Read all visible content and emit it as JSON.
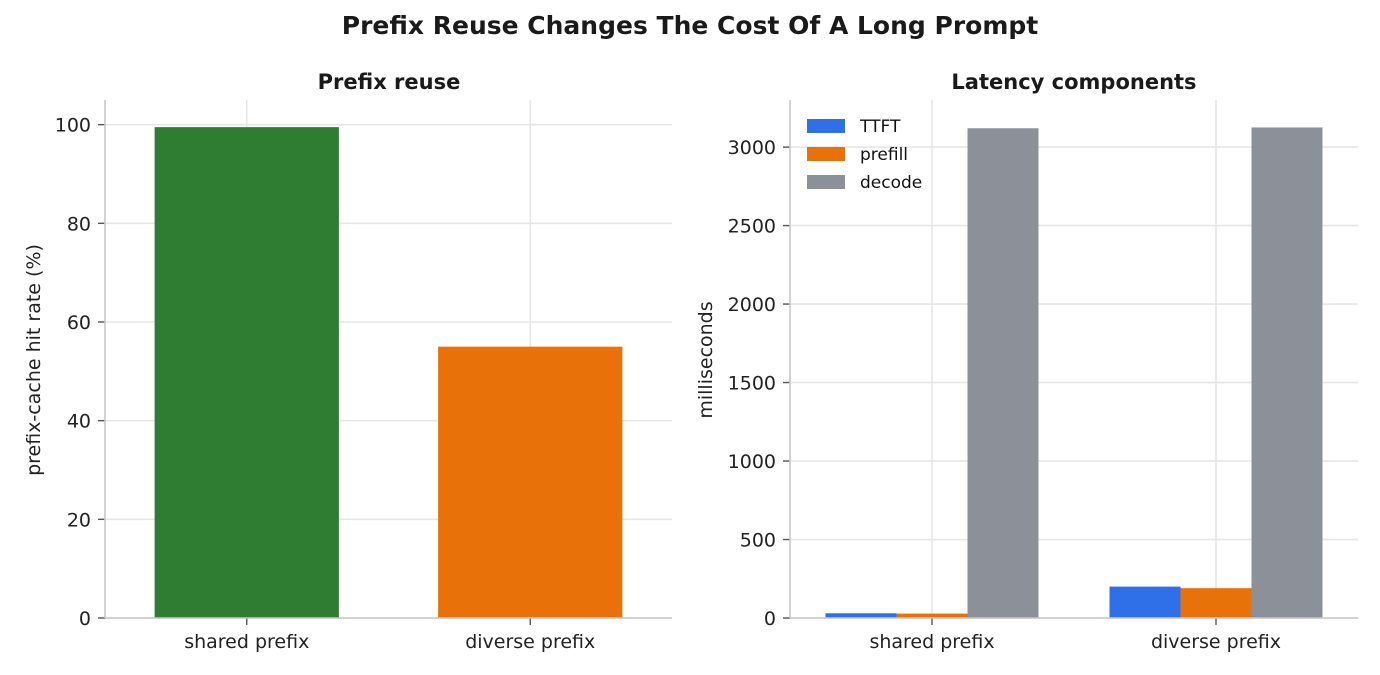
{
  "figure_title": "Prefix Reuse Changes The Cost Of A Long Prompt",
  "chart_data": [
    {
      "type": "bar",
      "title": "Prefix reuse",
      "xlabel": "",
      "ylabel": "prefix-cache hit rate (%)",
      "categories": [
        "shared prefix",
        "diverse prefix"
      ],
      "values": [
        99.5,
        55.0
      ],
      "colors": [
        "#2e7d32",
        "#e8710a"
      ],
      "ylim": [
        0,
        105
      ],
      "yticks": [
        0,
        20,
        40,
        60,
        80,
        100
      ],
      "grid": true
    },
    {
      "type": "bar",
      "title": "Latency components",
      "xlabel": "",
      "ylabel": "milliseconds",
      "categories": [
        "shared prefix",
        "diverse prefix"
      ],
      "series": [
        {
          "name": "TTFT",
          "values": [
            30,
            200
          ],
          "color": "#2f6fe8"
        },
        {
          "name": "prefill",
          "values": [
            28,
            190
          ],
          "color": "#e8710a"
        },
        {
          "name": "decode",
          "values": [
            3120,
            3125
          ],
          "color": "#8c9099"
        }
      ],
      "ylim": [
        0,
        3300
      ],
      "yticks": [
        0,
        500,
        1000,
        1500,
        2000,
        2500,
        3000
      ],
      "legend": "top-left",
      "grid": true
    }
  ]
}
